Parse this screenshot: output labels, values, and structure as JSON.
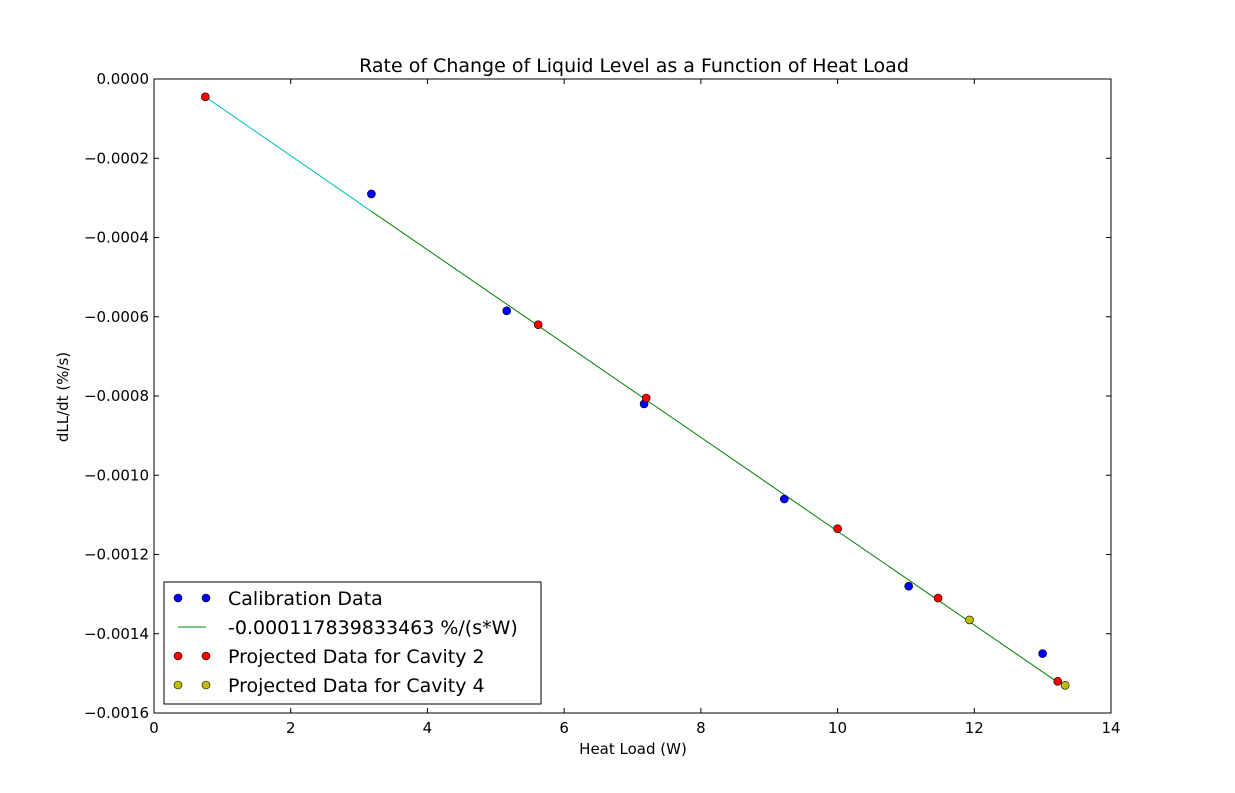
{
  "chart_data": {
    "type": "scatter",
    "title": "Rate of Change of Liquid Level as a Function of Heat Load",
    "xlabel": "Heat Load (W)",
    "ylabel": "dLL/dt (%/s)",
    "xlim": [
      0,
      14
    ],
    "ylim": [
      -0.0016,
      0.0
    ],
    "x_ticks": [
      0,
      2,
      4,
      6,
      8,
      10,
      12,
      14
    ],
    "x_tick_labels": [
      "0",
      "2",
      "4",
      "6",
      "8",
      "10",
      "12",
      "14"
    ],
    "y_ticks": [
      0.0,
      -0.0002,
      -0.0004,
      -0.0006,
      -0.0008,
      -0.001,
      -0.0012,
      -0.0014,
      -0.0016
    ],
    "y_tick_labels": [
      "0.0000",
      "−0.0002",
      "−0.0004",
      "−0.0006",
      "−0.0008",
      "−0.0010",
      "−0.0012",
      "−0.0014",
      "−0.0016"
    ],
    "grid": false,
    "legend_position": "lower-left",
    "series": [
      {
        "name": "Calibration Data",
        "kind": "points",
        "color": "#0000ff",
        "points": [
          [
            3.18,
            -0.00029
          ],
          [
            5.16,
            -0.000585
          ],
          [
            7.17,
            -0.00082
          ],
          [
            9.22,
            -0.00106
          ],
          [
            11.04,
            -0.00128
          ],
          [
            13.0,
            -0.00145
          ]
        ]
      },
      {
        "name": "-0.000117839833463 %/(s*W)",
        "kind": "line",
        "color": "#008000",
        "points": [
          [
            3.18,
            -0.000334
          ],
          [
            13.2,
            -0.00152
          ]
        ]
      },
      {
        "name": "Projected Data for Cavity 2",
        "kind": "points",
        "color": "#ff0000",
        "points": [
          [
            0.75,
            -4.5e-05
          ],
          [
            5.62,
            -0.00062
          ],
          [
            7.2,
            -0.000805
          ],
          [
            10.0,
            -0.001135
          ],
          [
            11.47,
            -0.00131
          ],
          [
            13.22,
            -0.00152
          ]
        ]
      },
      {
        "name": "Projected Data for Cavity 4",
        "kind": "points",
        "color": "#bfbf00",
        "points": [
          [
            11.93,
            -0.001365
          ],
          [
            13.33,
            -0.00153
          ]
        ]
      }
    ],
    "extension_lines": [
      {
        "color": "#00bfbf",
        "points": [
          [
            0.75,
            -4.5e-05
          ],
          [
            3.18,
            -0.000334
          ]
        ]
      },
      {
        "color": "#000000",
        "points": [
          [
            13.2,
            -0.00152
          ],
          [
            13.33,
            -0.00153
          ]
        ]
      }
    ]
  }
}
